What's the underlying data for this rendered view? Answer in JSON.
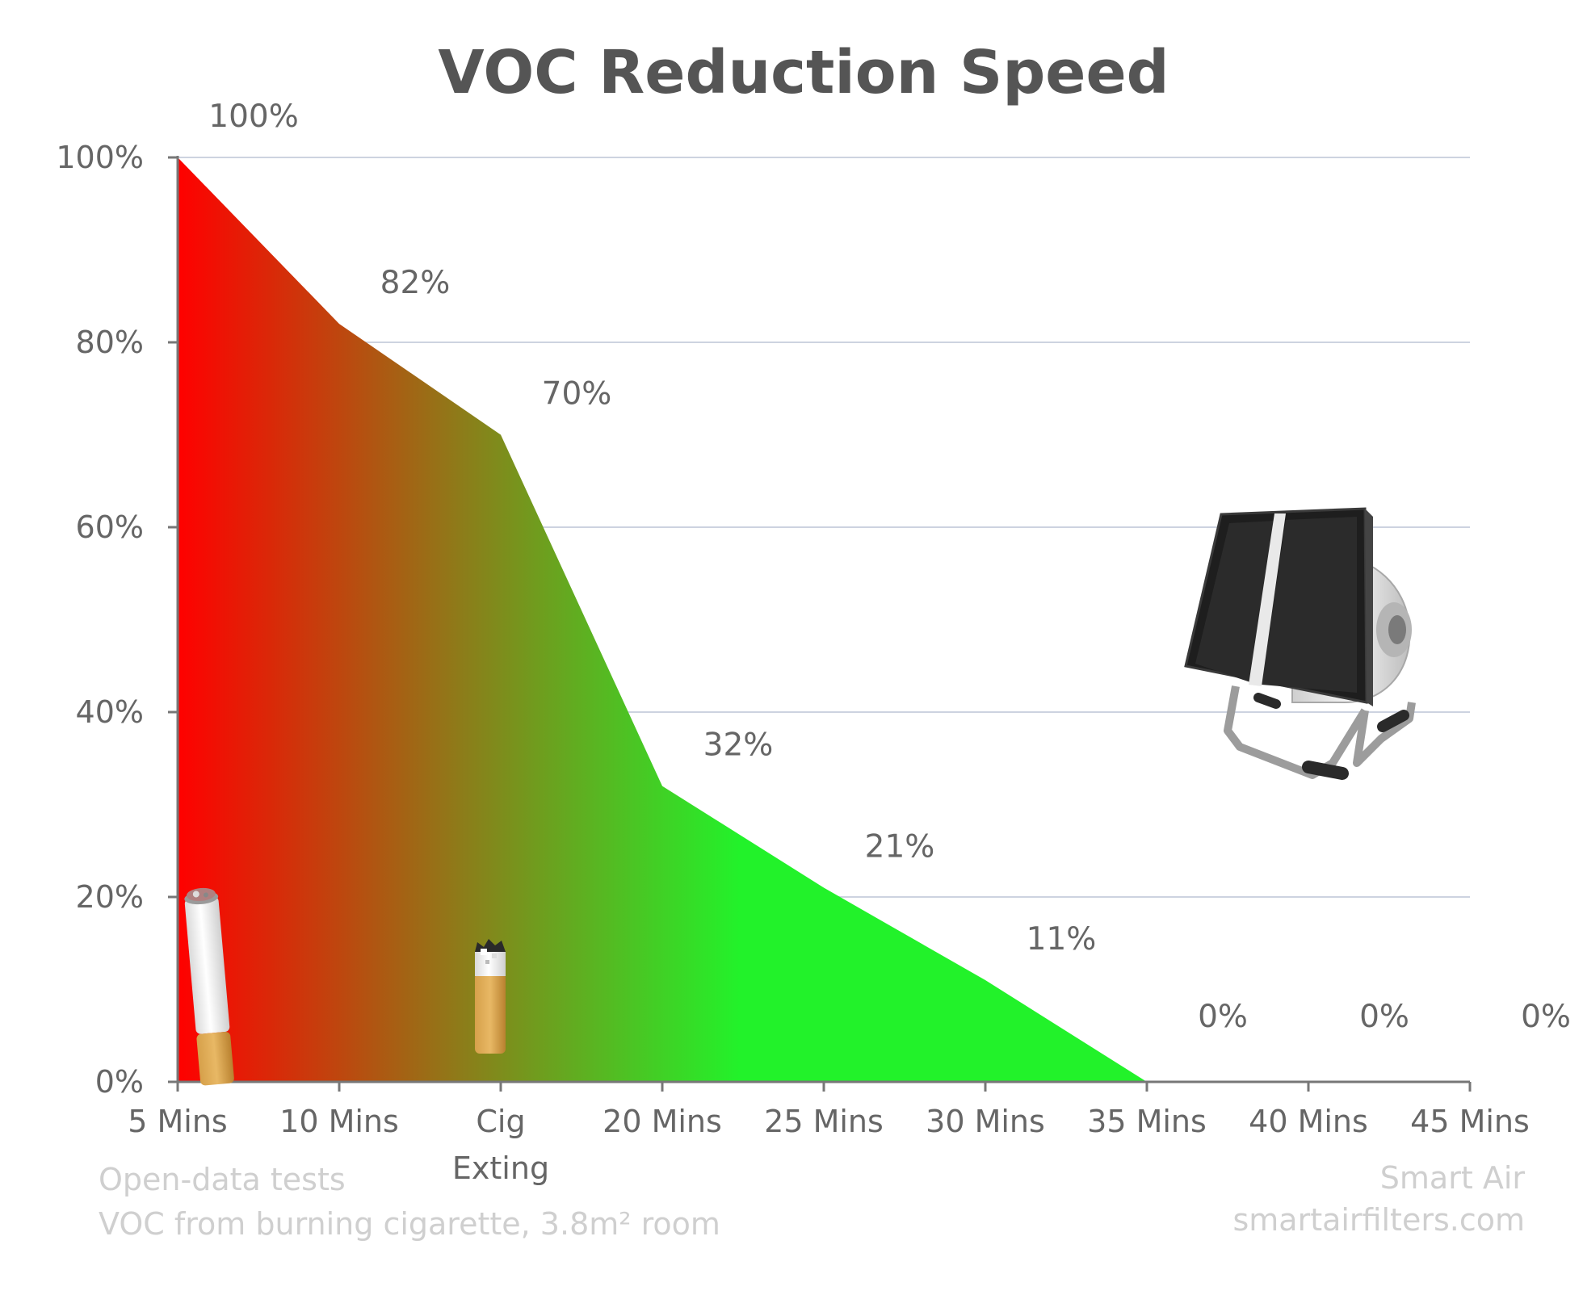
{
  "chart_data": {
    "type": "area",
    "title": "VOC Reduction Speed",
    "categories": [
      "5 Mins",
      "10 Mins",
      "Cig\nExting",
      "20 Mins",
      "25 Mins",
      "30 Mins",
      "35 Mins",
      "40 Mins",
      "45 Mins"
    ],
    "values": [
      100,
      82,
      70,
      32,
      21,
      11,
      0,
      0,
      0
    ],
    "data_labels": [
      "100%",
      "82%",
      "70%",
      "32%",
      "21%",
      "11%",
      "0%",
      "0%",
      "0%"
    ],
    "y_ticks": [
      "0%",
      "20%",
      "40%",
      "60%",
      "80%",
      "100%"
    ],
    "ylim": [
      0,
      100
    ],
    "xlabel": "",
    "ylabel": "",
    "grid": true,
    "gradient_colors": [
      "#ff0000",
      "#8a7f1a",
      "#22f22a"
    ],
    "illustrations": [
      "cigarette-icon",
      "cigarette-butt-icon",
      "air-purifier-icon"
    ]
  },
  "footer": {
    "left_line1": "Open-data tests",
    "left_line2": "VOC from burning cigarette, 3.8m² room",
    "right_line1": "Smart Air",
    "right_line2": "smartairfilters.com"
  }
}
